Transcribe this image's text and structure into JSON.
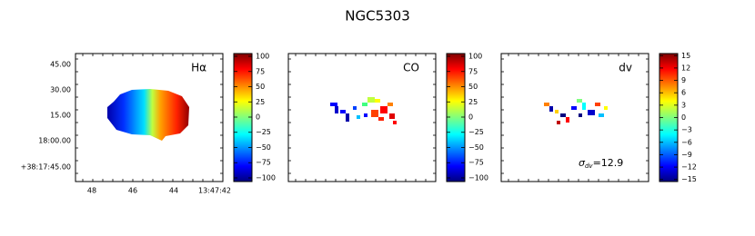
{
  "title": "NGC5303",
  "colormap": "jet",
  "yticklabels": [
    "45.00",
    "30.00",
    "15.00",
    "18:00.00",
    "+38:17:45.00"
  ],
  "xticklabels": [
    "48",
    "46",
    "44",
    "13:47:42"
  ],
  "panels": [
    {
      "label": "Hα",
      "colorbar": {
        "lim": [
          -106,
          104.5
        ],
        "ticks": [
          {
            "value": 100,
            "label": "100"
          },
          {
            "value": 75,
            "label": "75"
          },
          {
            "value": 50,
            "label": "50"
          },
          {
            "value": 25,
            "label": "25"
          },
          {
            "value": 0,
            "label": "0"
          },
          {
            "value": -25,
            "label": "−25"
          },
          {
            "value": -50,
            "label": "−50"
          },
          {
            "value": -75,
            "label": "−75"
          },
          {
            "value": -100,
            "label": "−100"
          }
        ]
      }
    },
    {
      "label": "CO",
      "colorbar": {
        "lim": [
          -106,
          104.5
        ],
        "ticks": [
          {
            "value": 100,
            "label": "100"
          },
          {
            "value": 75,
            "label": "75"
          },
          {
            "value": 50,
            "label": "50"
          },
          {
            "value": 25,
            "label": "25"
          },
          {
            "value": 0,
            "label": "0"
          },
          {
            "value": -25,
            "label": "−25"
          },
          {
            "value": -50,
            "label": "−50"
          },
          {
            "value": -75,
            "label": "−75"
          },
          {
            "value": -100,
            "label": "−100"
          }
        ]
      }
    },
    {
      "label": "dv",
      "annotation": {
        "symbol": "σ",
        "subscript": "dv",
        "text": "=12.9"
      },
      "colorbar": {
        "lim": [
          -15.5,
          15.5
        ],
        "ticks": [
          15,
          12,
          9,
          6,
          3,
          0,
          {
            "value": -3,
            "label": "−3"
          },
          {
            "value": -6,
            "label": "−6"
          },
          {
            "value": -9,
            "label": "−9"
          },
          {
            "value": -12,
            "label": "−12"
          },
          {
            "value": -15,
            "label": "−15"
          }
        ]
      }
    }
  ]
}
